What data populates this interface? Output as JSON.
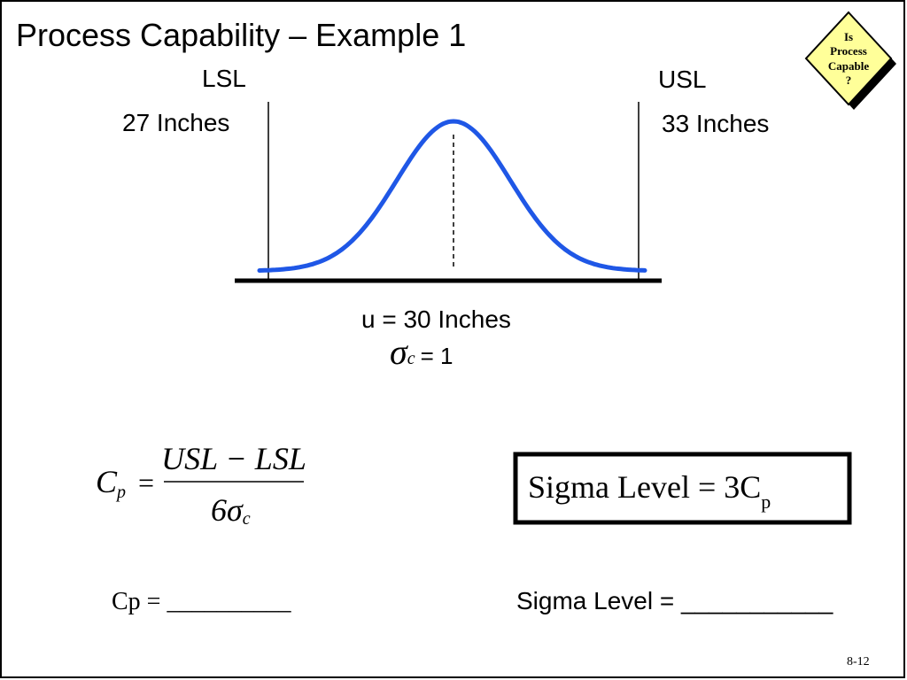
{
  "header": {
    "title": "Process Capability – Example 1"
  },
  "badge": {
    "lines": [
      "Is",
      "Process",
      "Capable",
      "?"
    ]
  },
  "diagram": {
    "lsl": {
      "label": "LSL",
      "value": "27 Inches"
    },
    "usl": {
      "label": "USL",
      "value": "33 Inches"
    },
    "mean": "u = 30 Inches",
    "sigma": {
      "symbol": "σ",
      "subscript": "c",
      "text": "= 1"
    }
  },
  "formulas": {
    "cp": {
      "lhs": "C",
      "lhs_sub": "p",
      "equals": "=",
      "numerator": "USL − LSL",
      "denominator": "6σ",
      "denominator_sub": "c"
    },
    "sigma_level": {
      "text": "Sigma Level = 3C",
      "sub": "p"
    }
  },
  "answers": {
    "cp": "Cp = __________",
    "sigma_level": "Sigma Level = ___________"
  },
  "footer": {
    "page": "8-12"
  }
}
